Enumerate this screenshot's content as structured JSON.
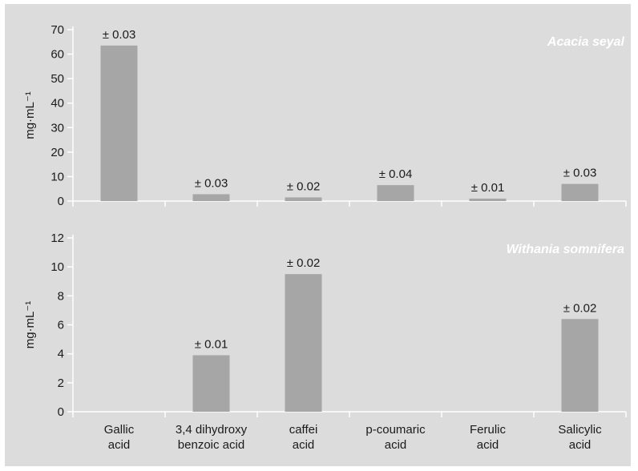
{
  "chart_data": [
    {
      "type": "bar",
      "title": "Acacia seyal",
      "ylabel": "mg·mL⁻¹",
      "ylim": [
        0,
        70
      ],
      "yticks": [
        0,
        10,
        20,
        30,
        40,
        50,
        60,
        70
      ],
      "categories": [
        [
          "Gallic",
          "acid"
        ],
        [
          "3,4 dihydroxy",
          "benzoic acid"
        ],
        [
          "caffei",
          "acid"
        ],
        [
          "p-coumaric",
          "acid"
        ],
        [
          "Ferulic",
          "acid"
        ],
        [
          "Salicylic",
          "acid"
        ]
      ],
      "values": [
        63.5,
        2.8,
        1.5,
        6.5,
        1.0,
        7.0
      ],
      "labels": [
        "± 0.03",
        "± 0.03",
        "± 0.02",
        "± 0.04",
        "± 0.01",
        "± 0.03"
      ],
      "bar_color": "#a6a6a6",
      "grid": false
    },
    {
      "type": "bar",
      "title": "Withania somnifera",
      "ylabel": "mg·mL⁻¹",
      "ylim": [
        0,
        12
      ],
      "yticks": [
        0,
        2,
        4,
        6,
        8,
        10,
        12
      ],
      "categories": [
        [
          "Gallic",
          "acid"
        ],
        [
          "3,4 dihydroxy",
          "benzoic acid"
        ],
        [
          "caffei",
          "acid"
        ],
        [
          "p-coumaric",
          "acid"
        ],
        [
          "Ferulic",
          "acid"
        ],
        [
          "Salicylic",
          "acid"
        ]
      ],
      "values": [
        0,
        3.9,
        9.5,
        0,
        0,
        6.4
      ],
      "labels": [
        "",
        "± 0.01",
        "± 0.02",
        "",
        "",
        "± 0.02"
      ],
      "bar_color": "#a6a6a6",
      "grid": false
    }
  ],
  "colors": {
    "background": "#dcdcdc",
    "bar": "#a6a6a6",
    "axis": "#ffffff",
    "title": "#ffffff",
    "text": "#1a1a1a"
  }
}
